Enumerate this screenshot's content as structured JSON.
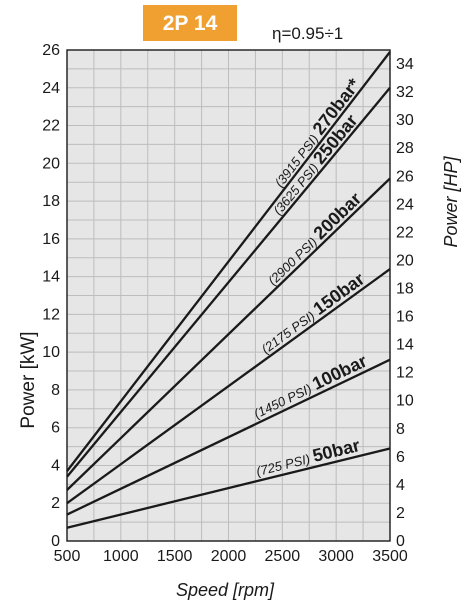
{
  "badge": {
    "text": "2P 14",
    "color": "#f0a030"
  },
  "efficiency": "η=0.95÷1",
  "chart_data": {
    "type": "line",
    "xlabel": "Speed [rpm]",
    "ylabel_left": "Power [kW]",
    "ylabel_right": "Power [HP]",
    "xlim": [
      500,
      3500
    ],
    "ylim_left": [
      0,
      26
    ],
    "ylim_right": [
      0,
      35
    ],
    "x_ticks": [
      500,
      1000,
      1500,
      2000,
      2500,
      3000,
      3500
    ],
    "y_ticks_left": [
      0,
      2,
      4,
      6,
      8,
      10,
      12,
      14,
      16,
      18,
      20,
      22,
      24,
      26
    ],
    "y_ticks_right": [
      0,
      2,
      4,
      6,
      8,
      10,
      12,
      14,
      16,
      18,
      20,
      22,
      24,
      26,
      28,
      30,
      32,
      34
    ],
    "grid": true,
    "series": [
      {
        "name": "50bar",
        "psi": "(725 PSI)",
        "bar": "50bar",
        "x": [
          500,
          3500
        ],
        "y": [
          0.7,
          4.9
        ]
      },
      {
        "name": "100bar",
        "psi": "(1450 PSI)",
        "bar": "100bar",
        "x": [
          500,
          3500
        ],
        "y": [
          1.4,
          9.6
        ]
      },
      {
        "name": "150bar",
        "psi": "(2175 PSI)",
        "bar": "150bar",
        "x": [
          500,
          3500
        ],
        "y": [
          2.0,
          14.4
        ]
      },
      {
        "name": "200bar",
        "psi": "(2900 PSI)",
        "bar": "200bar",
        "x": [
          500,
          3500
        ],
        "y": [
          2.7,
          19.2
        ]
      },
      {
        "name": "250bar",
        "psi": "(3625 PSI)",
        "bar": "250bar",
        "x": [
          500,
          3500
        ],
        "y": [
          3.4,
          24.0
        ]
      },
      {
        "name": "270bar*",
        "psi": "(3915 PSI)",
        "bar": "270bar*",
        "x": [
          500,
          3500
        ],
        "y": [
          3.7,
          25.9
        ]
      }
    ]
  }
}
